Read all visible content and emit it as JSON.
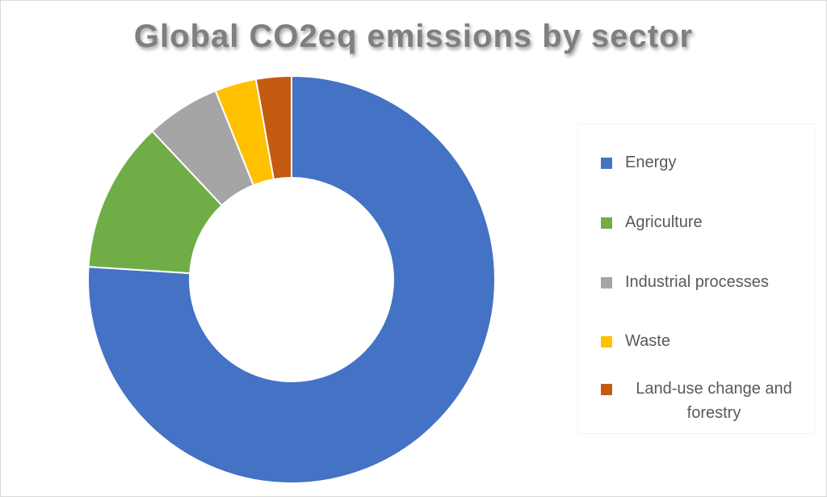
{
  "chart_data": {
    "type": "donut",
    "title": "Global CO2eq emissions by sector",
    "categories": [
      "Energy",
      "Agriculture",
      "Industrial processes",
      "Waste",
      "Land-use change and forestry"
    ],
    "values": [
      76,
      12,
      5.9,
      3.3,
      2.8
    ],
    "colors": [
      "#4472c4",
      "#70ad47",
      "#a5a5a5",
      "#ffc000",
      "#c55a11"
    ],
    "legend": "right"
  }
}
